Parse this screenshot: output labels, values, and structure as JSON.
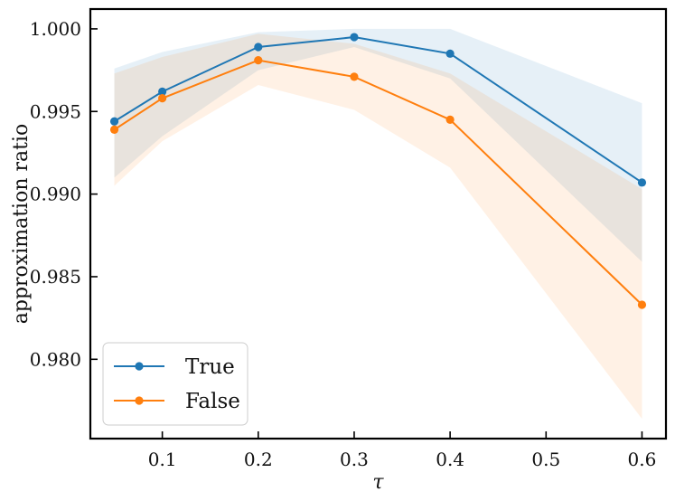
{
  "chart_data": {
    "type": "line",
    "title": "",
    "xlabel": "τ",
    "ylabel": "approximation ratio",
    "xlim": [
      0.025,
      0.625
    ],
    "ylim": [
      0.9752,
      1.0012
    ],
    "grid": false,
    "legend_position": "bottom-left",
    "x": [
      0.05,
      0.1,
      0.2,
      0.3,
      0.4,
      0.6
    ],
    "x_ticks": [
      0.1,
      0.2,
      0.3,
      0.4,
      0.5,
      0.6
    ],
    "x_tick_labels": [
      "0.1",
      "0.2",
      "0.3",
      "0.4",
      "0.5",
      "0.6"
    ],
    "y_ticks": [
      0.98,
      0.985,
      0.99,
      0.995,
      1.0
    ],
    "y_tick_labels": [
      "0.980",
      "0.985",
      "0.990",
      "0.995",
      "1.000"
    ],
    "series": [
      {
        "name": "True",
        "color": "#1f77b4",
        "values": [
          0.9944,
          0.9962,
          0.9989,
          0.9995,
          0.9985,
          0.9907
        ],
        "lower": [
          0.991,
          0.9935,
          0.9975,
          0.9989,
          0.997,
          0.9859
        ],
        "upper": [
          0.9976,
          0.9986,
          0.9998,
          1.0,
          1.0,
          0.9955
        ]
      },
      {
        "name": "False",
        "color": "#ff7f0e",
        "values": [
          0.9939,
          0.9958,
          0.9981,
          0.9971,
          0.9945,
          0.9833
        ],
        "lower": [
          0.9905,
          0.9932,
          0.9966,
          0.9951,
          0.9916,
          0.9764
        ],
        "upper": [
          0.9973,
          0.9983,
          0.9997,
          0.9991,
          0.9973,
          0.9903
        ]
      }
    ]
  }
}
